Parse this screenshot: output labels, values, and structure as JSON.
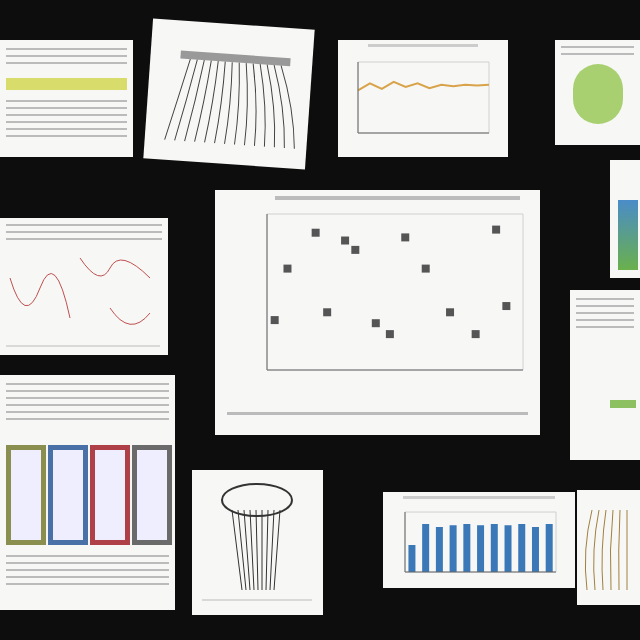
{
  "chart_data": [
    {
      "type": "scatter",
      "x": [
        0.6,
        1.6,
        3.8,
        4.7,
        6.1,
        6.9,
        8.5,
        9.6,
        10.8,
        12.4,
        14.3,
        16.3,
        17.9,
        18.7
      ],
      "values": [
        32,
        65,
        88,
        37,
        83,
        77,
        30,
        23,
        85,
        65,
        37,
        23,
        90,
        41
      ],
      "color": "#555555",
      "marker": "square",
      "xlim": [
        0,
        20
      ],
      "xticks": [
        0,
        2,
        4,
        6,
        8,
        10,
        12,
        14,
        16,
        18,
        20
      ],
      "ylim": [
        0,
        100
      ],
      "yticks": [
        0,
        20,
        40,
        60,
        80,
        100
      ],
      "grid": true,
      "tick_labels": false
    },
    {
      "type": "line",
      "categories": [
        null,
        null,
        null,
        null,
        null,
        null,
        null,
        null,
        null,
        null,
        null,
        null
      ],
      "values": [
        60,
        70,
        62,
        72,
        65,
        70,
        63,
        68,
        66,
        68,
        67,
        68
      ],
      "color": "#d9a34a",
      "ylim": [
        0,
        100
      ],
      "yticks": [
        0,
        20,
        40,
        60,
        80,
        100
      ],
      "grid": true,
      "tick_labels": false
    },
    {
      "type": "bar",
      "categories": [
        null,
        null,
        null,
        null,
        null,
        null,
        null,
        null,
        null,
        null,
        null
      ],
      "values": [
        45,
        80,
        75,
        78,
        80,
        78,
        80,
        78,
        80,
        75,
        80
      ],
      "color": "#3a78b8",
      "ylim": [
        0,
        100
      ],
      "yticks": [
        0,
        25,
        50,
        75,
        100
      ],
      "grid": true,
      "tick_labels": false
    }
  ]
}
